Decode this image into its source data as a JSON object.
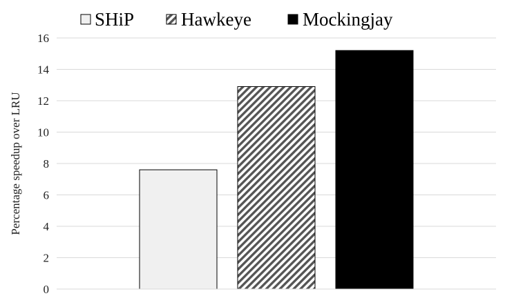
{
  "chart_data": {
    "type": "bar",
    "title": "",
    "xlabel": "",
    "ylabel": "Percentage speedup over LRU",
    "ylim": [
      0,
      16
    ],
    "yticks": [
      0,
      2,
      4,
      6,
      8,
      10,
      12,
      14,
      16
    ],
    "grid": true,
    "legend_position": "top",
    "categories": [
      ""
    ],
    "series": [
      {
        "name": "SHiP",
        "values": [
          7.6
        ],
        "fill": "light-gray",
        "color": "#f0f0f0"
      },
      {
        "name": "Hawkeye",
        "values": [
          12.9
        ],
        "fill": "diagonal-hatch",
        "color": "#555555"
      },
      {
        "name": "Mockingjay",
        "values": [
          15.2
        ],
        "fill": "solid-black",
        "color": "#000000"
      }
    ]
  }
}
